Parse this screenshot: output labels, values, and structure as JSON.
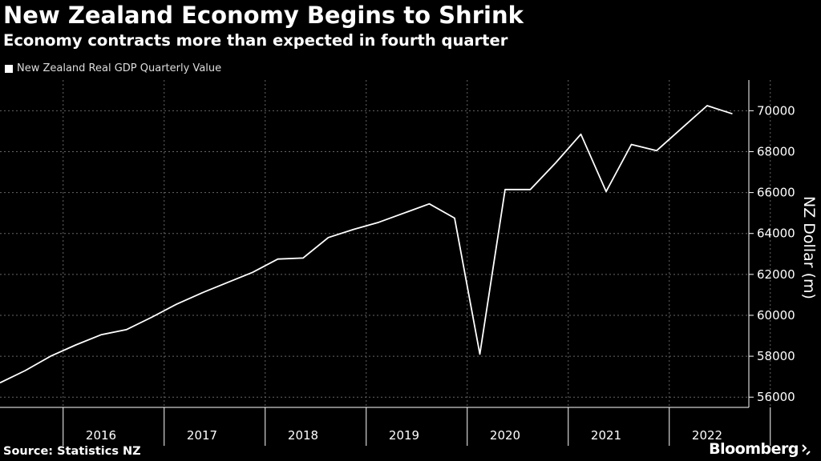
{
  "header": {
    "title": "New Zealand Economy Begins to Shrink",
    "subtitle": "Economy contracts more than expected in fourth quarter"
  },
  "footer": {
    "source": "Source: Statistics NZ",
    "brand": "Bloomberg"
  },
  "colors": {
    "background": "#000000",
    "line": "#ffffff",
    "grid": "#666666"
  },
  "chart_data": {
    "type": "line",
    "title": "New Zealand Economy Begins to Shrink",
    "subtitle": "Economy contracts more than expected in fourth quarter",
    "xlabel": "",
    "ylabel": "NZ Dollar (m)",
    "ylim": [
      55500,
      71500
    ],
    "yticks": [
      56000,
      58000,
      60000,
      62000,
      64000,
      66000,
      68000,
      70000
    ],
    "ytick_labels": [
      "56000",
      "58000",
      "60000",
      "62000",
      "64000",
      "66000",
      "68000",
      "70000"
    ],
    "year_labels": [
      "2016",
      "2017",
      "2018",
      "2019",
      "2020",
      "2021",
      "2022"
    ],
    "grid": true,
    "legend_position": "top-left",
    "series": [
      {
        "name": "New Zealand Real GDP Quarterly Value",
        "x": [
          "2015 Q3",
          "2015 Q4",
          "2016 Q1",
          "2016 Q2",
          "2016 Q3",
          "2016 Q4",
          "2017 Q1",
          "2017 Q2",
          "2017 Q3",
          "2017 Q4",
          "2018 Q1",
          "2018 Q2",
          "2018 Q3",
          "2018 Q4",
          "2019 Q1",
          "2019 Q2",
          "2019 Q3",
          "2019 Q4",
          "2020 Q1",
          "2020 Q2",
          "2020 Q3",
          "2020 Q4",
          "2021 Q1",
          "2021 Q2",
          "2021 Q3",
          "2021 Q4",
          "2022 Q1",
          "2022 Q2",
          "2022 Q3",
          "2022 Q4"
        ],
        "values": [
          56700,
          57300,
          58000,
          58550,
          59050,
          59300,
          59900,
          60550,
          61100,
          61600,
          62100,
          62750,
          62800,
          63800,
          64200,
          64550,
          65000,
          65450,
          64750,
          58100,
          66150,
          66150,
          67450,
          68850,
          66050,
          68350,
          68050,
          69150,
          70250,
          69850
        ]
      }
    ]
  }
}
